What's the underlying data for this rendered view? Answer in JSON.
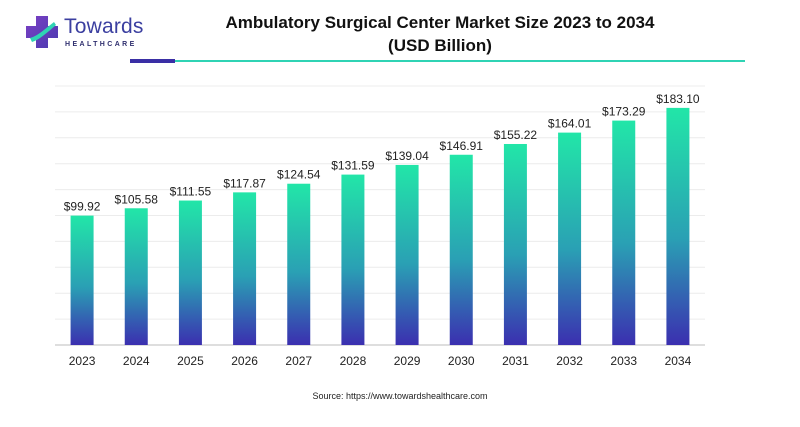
{
  "brand": {
    "name": "Towards",
    "sub": "HEALTHCARE",
    "mark_icon": "cross-plus-icon",
    "colors": {
      "primary": "#3b3fa0",
      "teal": "#2fd3b4",
      "purple": "#6a3fb0"
    }
  },
  "header": {
    "title_line1": "Ambulatory Surgical Center Market Size 2023 to 2034",
    "title_line2": "(USD Billion)"
  },
  "chart_data": {
    "type": "bar",
    "title": "Ambulatory Surgical Center Market Size 2023 to 2034 (USD Billion)",
    "xlabel": "",
    "ylabel": "",
    "categories": [
      "2023",
      "2024",
      "2025",
      "2026",
      "2027",
      "2028",
      "2029",
      "2030",
      "2031",
      "2032",
      "2033",
      "2034"
    ],
    "values": [
      99.92,
      105.58,
      111.55,
      117.87,
      124.54,
      131.59,
      139.04,
      146.91,
      155.22,
      164.01,
      173.29,
      183.1
    ],
    "labels": [
      "$99.92",
      "$105.58",
      "$111.55",
      "$117.87",
      "$124.54",
      "$131.59",
      "$139.04",
      "$146.91",
      "$155.22",
      "$164.01",
      "$173.29",
      "$183.10"
    ],
    "ylim": [
      0,
      200
    ],
    "grid": true,
    "bar_gradient": {
      "top": "#22e6a8",
      "bottom": "#3b2fb0"
    }
  },
  "footer": {
    "source": "Source: https://www.towardshealthcare.com"
  }
}
